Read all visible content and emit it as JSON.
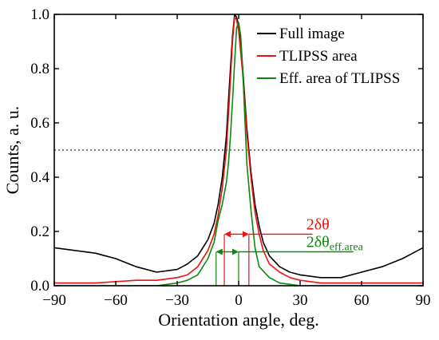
{
  "chart_data": {
    "type": "line",
    "xlabel": "Orientation angle, deg.",
    "ylabel": "Counts, a. u.",
    "xlim": [
      -90,
      90
    ],
    "ylim": [
      0,
      1.0
    ],
    "xticks": [
      -90,
      -60,
      -30,
      0,
      30,
      60,
      90
    ],
    "xtick_labels": [
      "−90",
      "−60",
      "−30",
      "0",
      "30",
      "60",
      "90"
    ],
    "yticks": [
      0.0,
      0.2,
      0.4,
      0.6,
      0.8,
      1.0
    ],
    "ytick_labels": [
      "0.0",
      "0.2",
      "0.4",
      "0.6",
      "0.8",
      "1.0"
    ],
    "grid": false,
    "legend_position": "top-right",
    "threshold": {
      "y": 0.5,
      "style": "dotted"
    },
    "series": [
      {
        "name": "Full image",
        "color": "#000000",
        "x": [
          -90,
          -80,
          -70,
          -60,
          -50,
          -40,
          -30,
          -25,
          -20,
          -15,
          -12,
          -10,
          -8,
          -6,
          -5,
          -4,
          -3,
          -2,
          -1,
          0,
          2,
          4,
          6,
          8,
          10,
          12,
          15,
          20,
          25,
          30,
          40,
          50,
          60,
          70,
          80,
          90
        ],
        "y": [
          0.14,
          0.13,
          0.12,
          0.1,
          0.07,
          0.05,
          0.06,
          0.08,
          0.11,
          0.17,
          0.23,
          0.3,
          0.4,
          0.55,
          0.68,
          0.8,
          0.92,
          1.0,
          0.99,
          0.96,
          0.8,
          0.58,
          0.42,
          0.3,
          0.22,
          0.16,
          0.11,
          0.07,
          0.05,
          0.04,
          0.03,
          0.03,
          0.05,
          0.07,
          0.1,
          0.14
        ]
      },
      {
        "name": "TLIPSS area",
        "color": "#ee1111",
        "x": [
          -90,
          -70,
          -50,
          -40,
          -30,
          -25,
          -20,
          -15,
          -12,
          -10,
          -8,
          -6,
          -5,
          -4,
          -3,
          -2,
          -1,
          0,
          2,
          4,
          6,
          8,
          10,
          12,
          15,
          20,
          25,
          30,
          40,
          50,
          70,
          90
        ],
        "y": [
          0.01,
          0.01,
          0.02,
          0.02,
          0.03,
          0.04,
          0.07,
          0.13,
          0.19,
          0.26,
          0.36,
          0.5,
          0.63,
          0.76,
          0.9,
          0.99,
          0.98,
          0.94,
          0.78,
          0.56,
          0.4,
          0.27,
          0.19,
          0.13,
          0.08,
          0.05,
          0.03,
          0.02,
          0.01,
          0.01,
          0.01,
          0.01
        ]
      },
      {
        "name": "Eff. area of TLIPSS",
        "color": "#0a8a0a",
        "x": [
          -90,
          -60,
          -40,
          -30,
          -25,
          -20,
          -15,
          -12,
          -10,
          -8,
          -6,
          -5,
          -4,
          -3,
          -2,
          -1,
          0,
          1,
          2,
          3,
          4,
          6,
          8,
          10,
          15,
          20,
          30,
          60,
          90
        ],
        "y": [
          0.0,
          0.0,
          0.0,
          0.01,
          0.02,
          0.04,
          0.1,
          0.16,
          0.24,
          0.3,
          0.38,
          0.45,
          0.55,
          0.68,
          0.82,
          0.95,
          0.97,
          0.92,
          0.8,
          0.62,
          0.45,
          0.28,
          0.14,
          0.07,
          0.03,
          0.01,
          0.0,
          0.0,
          0.0
        ]
      }
    ],
    "annotations": [
      {
        "id": "fwhm-tlipss",
        "text": "2δθ",
        "subscript": "",
        "color": "#ee1111",
        "x_start": -7,
        "x_end": 5,
        "y": 0.19,
        "label_x": 33,
        "line_to_x": 36
      },
      {
        "id": "fwhm-eff",
        "text": "2δθ",
        "subscript": "eff.area",
        "color": "#0a8a0a",
        "x_start": -11,
        "x_end": 0,
        "y": 0.125,
        "label_x": 33,
        "line_to_x": 56
      }
    ]
  }
}
